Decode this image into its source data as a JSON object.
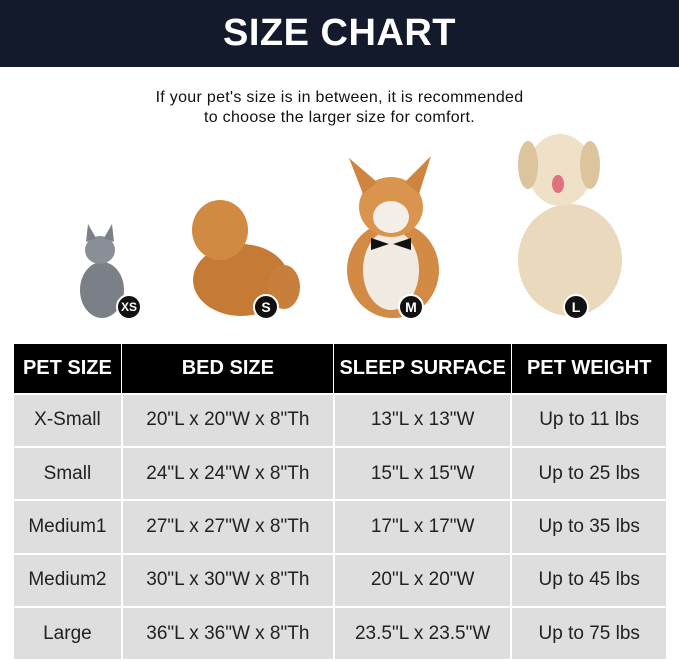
{
  "header": {
    "title": "SIZE CHART"
  },
  "note": {
    "line1": "If your pet's size is in between, it is recommended",
    "line2": "to choose the larger size for comfort."
  },
  "pets": [
    {
      "animal": "cat",
      "badge": "XS"
    },
    {
      "animal": "pomeranian",
      "badge": "S"
    },
    {
      "animal": "corgi",
      "badge": "M"
    },
    {
      "animal": "golden retriever",
      "badge": "L"
    }
  ],
  "table": {
    "headers": [
      "PET SIZE",
      "BED SIZE",
      "SLEEP SURFACE",
      "PET WEIGHT"
    ],
    "rows": [
      [
        "X-Small",
        "20\"L x 20\"W x 8\"Th",
        "13\"L x 13\"W",
        "Up to 11 lbs"
      ],
      [
        "Small",
        "24\"L x 24\"W x 8\"Th",
        "15\"L x 15\"W",
        "Up to 25 lbs"
      ],
      [
        "Medium1",
        "27\"L x 27\"W x 8\"Th",
        "17\"L x 17\"W",
        "Up to 35 lbs"
      ],
      [
        "Medium2",
        "30\"L x 30\"W x 8\"Th",
        "20\"L x 20\"W",
        "Up to 45 lbs"
      ],
      [
        "Large",
        "36\"L x 36\"W x 8\"Th",
        "23.5\"L x 23.5\"W",
        "Up to 75 lbs"
      ]
    ]
  },
  "colors": {
    "banner": "#121a2c",
    "header_cell": "#000000",
    "row_cell": "#dedede"
  }
}
